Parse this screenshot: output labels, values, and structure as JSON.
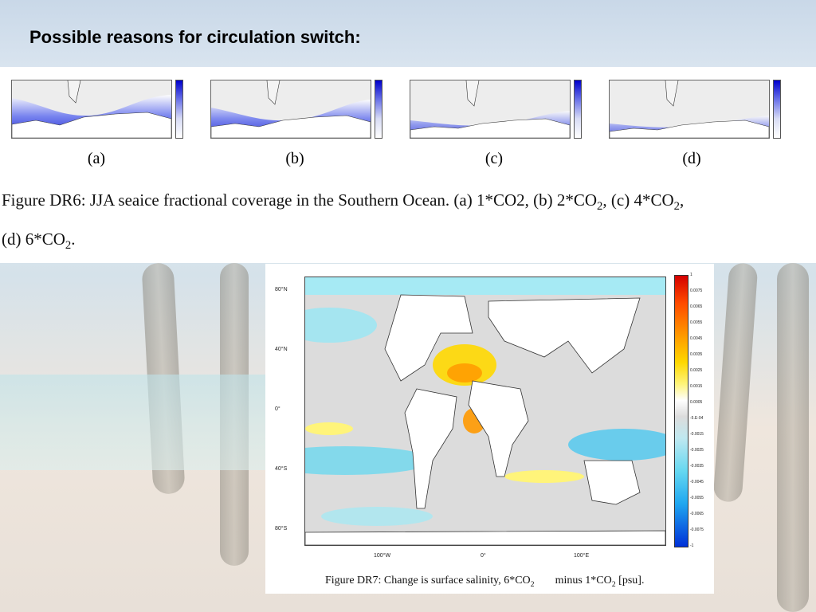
{
  "slide": {
    "title": "Possible reasons for circulation switch:"
  },
  "figure_dr6": {
    "panels": [
      {
        "label": "(a)"
      },
      {
        "label": "(b)"
      },
      {
        "label": "(c)"
      },
      {
        "label": "(d)"
      }
    ],
    "caption_line1_start": "Figure DR6: JJA seaice fractional coverage in the Southern Ocean. (a) 1*CO2, (b) 2*CO",
    "caption_sub": "2",
    "caption_mid": ", (c) 4*CO",
    "caption_sub2": "2",
    "caption_end": ",",
    "caption_line2_start": "(d) 6*CO",
    "caption_line2_sub": "2",
    "caption_line2_end": "."
  },
  "figure_dr7": {
    "y_ticks": [
      "80°N",
      "40°N",
      "0°",
      "40°S",
      "80°S"
    ],
    "x_ticks": [
      "100°W",
      "0°",
      "100°E"
    ],
    "colorbar_labels": [
      "1",
      "0.0075",
      "0.0065",
      "0.0055",
      "0.0045",
      "0.0035",
      "0.0025",
      "0.0015",
      "0.0005",
      "-5.E-04",
      "-0.0015",
      "-0.0025",
      "-0.0035",
      "-0.0045",
      "-0.0055",
      "-0.0065",
      "-0.0075",
      "-1"
    ],
    "caption_start": "Figure DR7: Change is surface salinity, 6*CO",
    "caption_sub": "2",
    "caption_mid": "minus 1*CO",
    "caption_sub2": "2",
    "caption_end": " [psu]."
  }
}
